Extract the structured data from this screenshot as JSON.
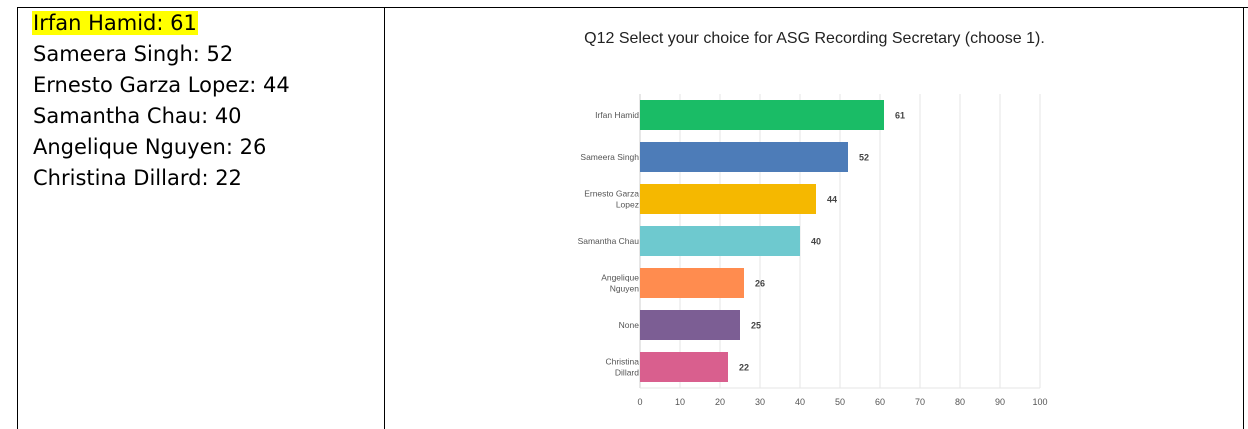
{
  "results_list": {
    "items": [
      {
        "text": "Irfan Hamid: 61",
        "highlighted": true
      },
      {
        "text": "Sameera Singh: 52",
        "highlighted": false
      },
      {
        "text": "Ernesto Garza Lopez: 44",
        "highlighted": false
      },
      {
        "text": "Samantha Chau: 40",
        "highlighted": false
      },
      {
        "text": "Angelique Nguyen: 26",
        "highlighted": false
      },
      {
        "text": "Christina Dillard: 22",
        "highlighted": false
      }
    ],
    "highlight_color": "#ffff00"
  },
  "chart_data": {
    "type": "bar",
    "orientation": "horizontal",
    "title": "Q12 Select your choice for ASG Recording Secretary (choose 1).",
    "categories": [
      [
        "Irfan Hamid"
      ],
      [
        "Sameera Singh"
      ],
      [
        "Ernesto Garza",
        "Lopez"
      ],
      [
        "Samantha Chau"
      ],
      [
        "Angelique",
        "Nguyen"
      ],
      [
        "None"
      ],
      [
        "Christina",
        "Dillard"
      ]
    ],
    "values": [
      61,
      52,
      44,
      40,
      26,
      25,
      22
    ],
    "colors": [
      "#1abc66",
      "#4d7cb8",
      "#f5b800",
      "#6ec9cf",
      "#ff8c4f",
      "#7c5e94",
      "#d95f8e"
    ],
    "xlim": [
      0,
      100
    ],
    "xticks": [
      0,
      10,
      20,
      30,
      40,
      50,
      60,
      70,
      80,
      90,
      100
    ],
    "grid": true,
    "data_labels": true
  }
}
